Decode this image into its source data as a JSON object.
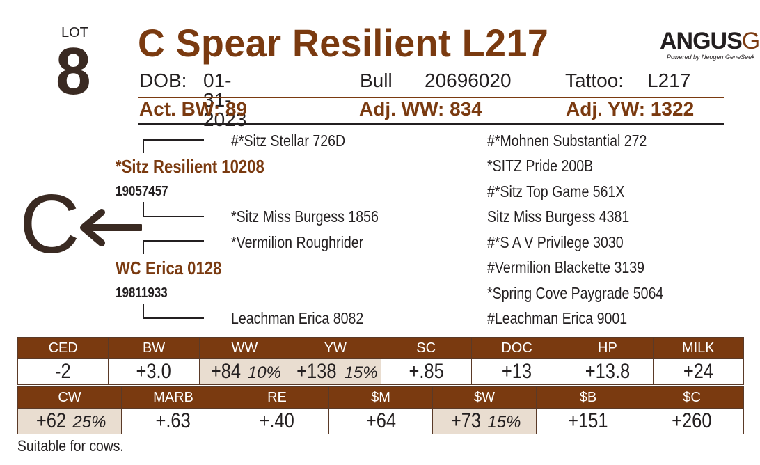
{
  "lot": {
    "label": "LOT",
    "number": "8"
  },
  "title": "C Spear Resilient L217",
  "logo": {
    "main": "ANGUS",
    "gs": "GS",
    "sub": "Powered by Neogen GeneSeek"
  },
  "info": {
    "dob_label": "DOB:",
    "dob": "01-31-2023",
    "sex": "Bull",
    "reg": "20696020",
    "tattoo_label": "Tattoo:",
    "tattoo": "L217"
  },
  "performance": {
    "bw": "Act. BW: 89",
    "ww": "Adj. WW: 834",
    "yw": "Adj. YW: 1322"
  },
  "pedigree": {
    "sire": {
      "name": "*Sitz Resilient 10208",
      "reg": "19057457"
    },
    "sire_sire": "#*Sitz Stellar 726D",
    "sire_dam": "*Sitz Miss Burgess 1856",
    "dam": {
      "name": "WC Erica 0128",
      "reg": "19811933"
    },
    "dam_sire": "*Vermilion Roughrider",
    "dam_dam": "Leachman Erica 8082",
    "grand": [
      "#*Mohnen Substantial 272",
      "*SITZ Pride 200B",
      "#*Sitz Top Game 561X",
      "Sitz Miss Burgess 4381",
      "#*S A V Privilege 3030",
      "#Vermilion Blackette 3139",
      "*Spring Cove Paygrade 5064",
      "#Leachman Erica 9001"
    ]
  },
  "big_letter": "C",
  "epd_row1": {
    "headers": [
      "CED",
      "BW",
      "WW",
      "YW",
      "SC",
      "DOC",
      "HP",
      "MILK"
    ],
    "values": [
      "-2",
      "+3.0",
      "+84",
      "+138",
      "+.85",
      "+13",
      "+13.8",
      "+24"
    ],
    "pcts": [
      "",
      "",
      "10%",
      "15%",
      "",
      "",
      "",
      ""
    ]
  },
  "epd_row2": {
    "headers": [
      "CW",
      "MARB",
      "RE",
      "$M",
      "$W",
      "$B",
      "$C"
    ],
    "values": [
      "+62",
      "+.63",
      "+.40",
      "+64",
      "+73",
      "+151",
      "+260"
    ],
    "pcts": [
      "25%",
      "",
      "",
      "",
      "15%",
      "",
      ""
    ]
  },
  "colors": {
    "accent": "#7a3a10",
    "dark": "#3a2a22",
    "highlight": "#e9ddd0"
  },
  "footnote": "Suitable for cows."
}
